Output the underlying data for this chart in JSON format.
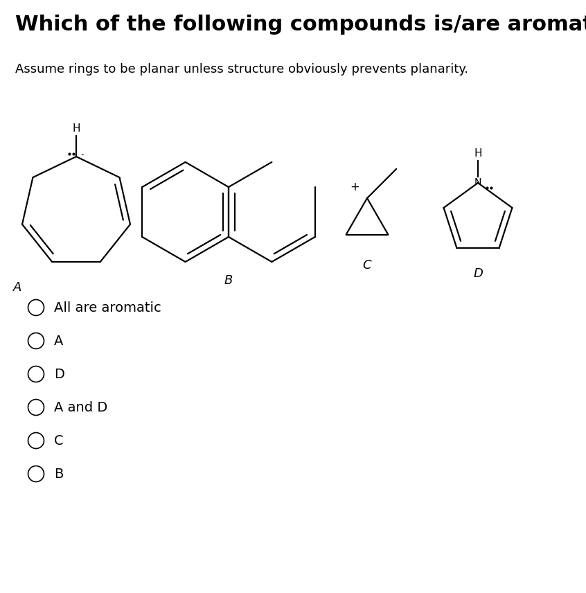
{
  "title": "Which of the following compounds is/are aromatic?",
  "subtitle": "Assume rings to be planar unless structure obviously prevents planarity.",
  "title_fontsize": 22,
  "subtitle_fontsize": 13,
  "bg_color": "#ffffff",
  "options": [
    "All are aromatic",
    "A",
    "D",
    "A and D",
    "C",
    "B"
  ],
  "lw": 1.6,
  "fig_w": 8.46,
  "fig_h": 8.56
}
